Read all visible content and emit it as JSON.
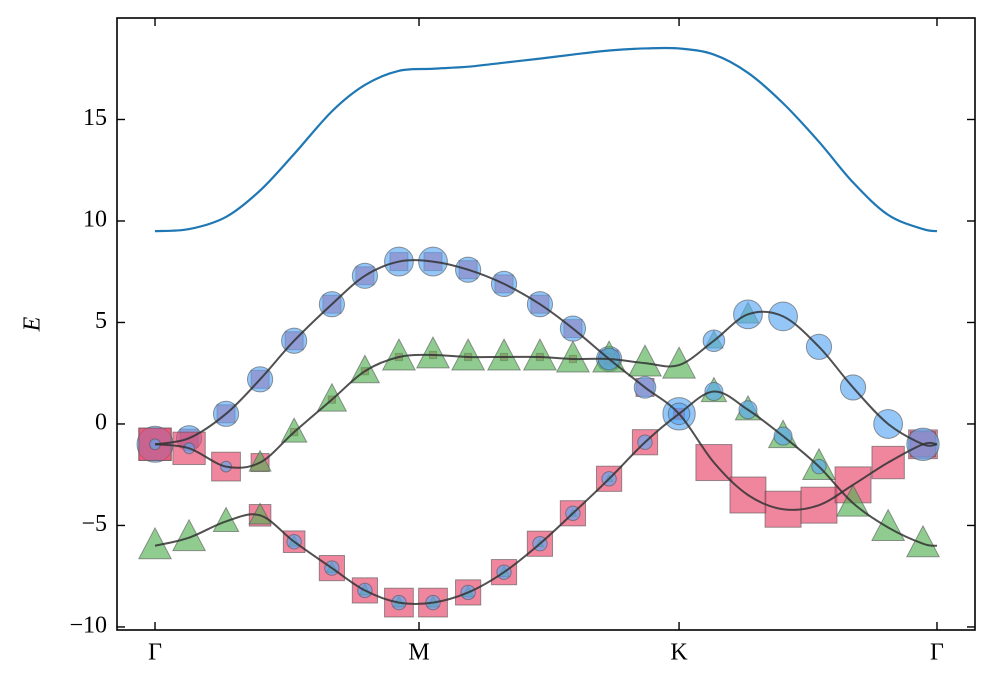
{
  "chart_data": {
    "type": "fatband",
    "ylabel": "E",
    "xlim": [
      -0.144,
      3.106
    ],
    "ylim": [
      -10.15,
      20.0
    ],
    "xticks": [
      {
        "value": 0,
        "label": "Γ"
      },
      {
        "value": 1,
        "label": "M"
      },
      {
        "value": 1.985,
        "label": "K"
      },
      {
        "value": 2.962,
        "label": "Γ"
      }
    ],
    "yticks": [
      {
        "value": -10,
        "label": "−10"
      },
      {
        "value": -5,
        "label": "−5"
      },
      0,
      5,
      10,
      15
    ],
    "x": [
      0,
      0.129,
      0.269,
      0.398,
      0.527,
      0.67,
      0.795,
      0.924,
      1.053,
      1.186,
      1.322,
      1.458,
      1.583,
      1.72,
      1.856,
      1.985,
      2.117,
      2.246,
      2.379,
      2.515,
      2.644,
      2.777,
      2.909,
      2.962
    ],
    "marker_colors": {
      "circle": "#5aa7f2",
      "square": "#e8456a",
      "triangle": "#55b055"
    },
    "line_color": "#333333",
    "top_band": {
      "color": "#1f77b4",
      "values": [
        9.5,
        9.6,
        10.2,
        11.5,
        13.3,
        15.4,
        16.7,
        17.4,
        17.5,
        17.6,
        17.8,
        18.0,
        18.2,
        18.4,
        18.5,
        18.5,
        18.2,
        17.3,
        15.8,
        13.9,
        11.9,
        10.3,
        9.6,
        9.5
      ]
    },
    "bands": [
      {
        "values": [
          -1,
          -0.7,
          0.5,
          2.2,
          4.1,
          5.9,
          7.3,
          8.0,
          8.0,
          7.6,
          6.9,
          5.9,
          4.7,
          3.2,
          1.8,
          0.5,
          -1.9,
          -3.5,
          -4.2,
          -4.0,
          -3.0,
          -1.9,
          -1.0,
          -1.0
        ],
        "weights": {
          "circle": [
            1.0,
            0.7,
            0.7,
            0.7,
            0.7,
            0.7,
            0.7,
            0.8,
            0.8,
            0.7,
            0.7,
            0.7,
            0.7,
            0.7,
            0.6,
            0.9,
            0,
            0,
            0,
            0,
            0,
            0,
            0,
            null
          ],
          "square": [
            0.9,
            0.5,
            0.5,
            0.5,
            0.5,
            0.5,
            0.5,
            0.5,
            0.5,
            0.5,
            0.5,
            0.5,
            0.5,
            0.5,
            0.5,
            0.3,
            1.0,
            1.0,
            1.0,
            1.0,
            1.0,
            0.9,
            0.8,
            null
          ],
          "triangle": [
            0,
            0,
            0,
            0,
            0,
            0,
            0,
            0,
            0,
            0,
            0,
            0,
            0,
            0,
            0,
            0,
            0,
            0,
            0,
            0,
            0,
            0,
            0,
            null
          ]
        }
      },
      {
        "values": [
          -1,
          -1.2,
          -2.1,
          -1.9,
          -0.4,
          1.2,
          2.6,
          3.3,
          3.4,
          3.3,
          3.3,
          3.3,
          3.2,
          3.2,
          3.0,
          2.9,
          4.1,
          5.4,
          5.3,
          3.8,
          1.8,
          0.0,
          -1.0,
          -1.0
        ],
        "weights": {
          "circle": [
            0.3,
            0.3,
            0.3,
            0,
            0,
            0,
            0,
            0,
            0,
            0,
            0,
            0,
            0,
            0.6,
            0,
            0,
            0.6,
            0.8,
            0.8,
            0.7,
            0.7,
            0.8,
            0.9,
            null
          ],
          "square": [
            0.9,
            0.9,
            0.8,
            0.5,
            0.2,
            0.2,
            0.2,
            0.2,
            0.2,
            0.2,
            0.2,
            0.2,
            0.2,
            0.3,
            0,
            0,
            0,
            0,
            0,
            0,
            0,
            0,
            0.7,
            null
          ],
          "triangle": [
            0,
            0,
            0,
            0.6,
            0.7,
            0.8,
            0.8,
            0.9,
            0.9,
            0.9,
            0.9,
            0.9,
            0.9,
            0.9,
            0.9,
            0.9,
            0.5,
            0.6,
            0,
            0,
            0,
            0,
            0,
            null
          ]
        }
      },
      {
        "values": [
          -6,
          -5.6,
          -4.8,
          -4.5,
          -5.8,
          -7.1,
          -8.2,
          -8.8,
          -8.8,
          -8.3,
          -7.3,
          -5.9,
          -4.4,
          -2.7,
          -0.9,
          0.5,
          1.6,
          0.7,
          -0.6,
          -2.1,
          -3.9,
          -5.1,
          -5.9,
          -6.0
        ],
        "weights": {
          "circle": [
            0,
            0,
            0,
            0,
            0.4,
            0.4,
            0.4,
            0.4,
            0.4,
            0.4,
            0.4,
            0.4,
            0.4,
            0.4,
            0.4,
            0.6,
            0.5,
            0.5,
            0.5,
            0.4,
            0,
            0,
            0,
            null
          ],
          "square": [
            0,
            0,
            0,
            0.6,
            0.6,
            0.7,
            0.7,
            0.8,
            0.8,
            0.7,
            0.7,
            0.7,
            0.7,
            0.7,
            0.7,
            0.3,
            0,
            0,
            0,
            0,
            0,
            0,
            0,
            null
          ],
          "triangle": [
            0.9,
            0.9,
            0.7,
            0.6,
            0.3,
            0.3,
            0.3,
            0.3,
            0.3,
            0.3,
            0.3,
            0.2,
            0.2,
            0.2,
            0,
            0,
            0.7,
            0.7,
            0.8,
            0.9,
            0.9,
            0.9,
            0.9,
            null
          ]
        }
      }
    ]
  }
}
